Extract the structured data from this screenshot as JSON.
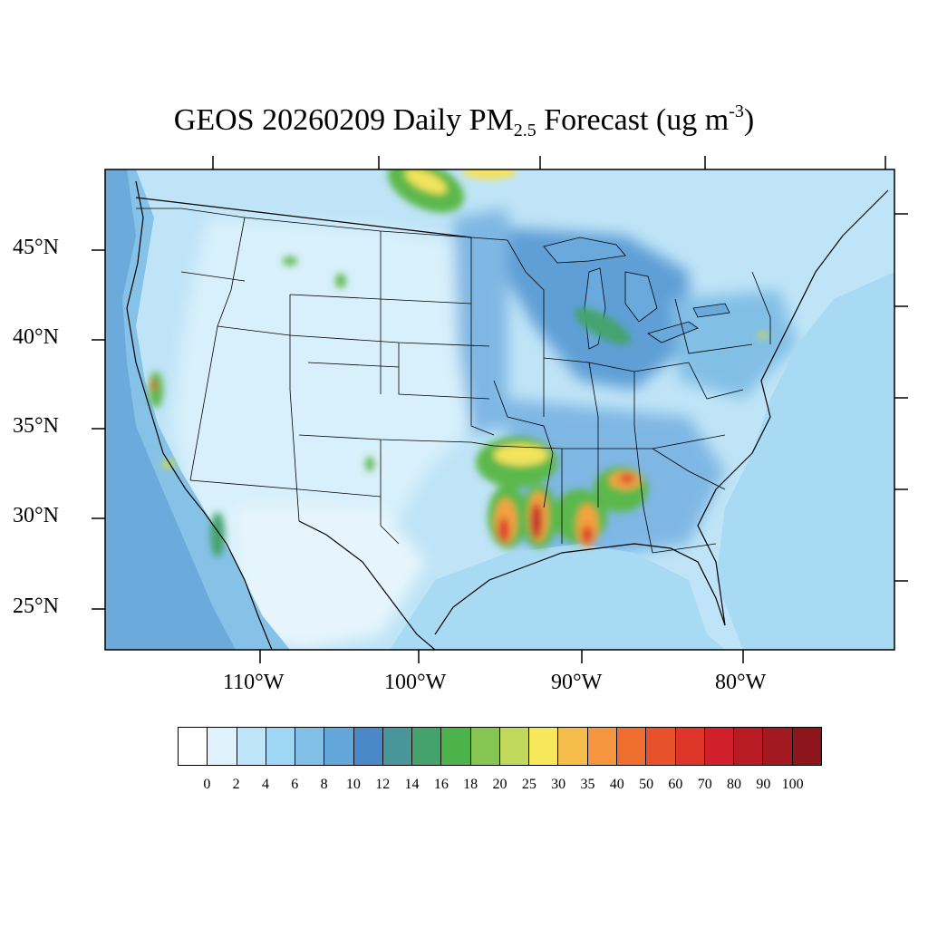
{
  "title": {
    "prefix": "GEOS 20260209 Daily PM",
    "sub": "2.5",
    "middle": " Forecast (ug m",
    "sup": "-3",
    "suffix": ")"
  },
  "lat_labels": [
    "45°N",
    "40°N",
    "35°N",
    "30°N",
    "25°N"
  ],
  "lon_labels": [
    "110°W",
    "100°W",
    "90°W",
    "80°W"
  ],
  "colorbar": {
    "labels": [
      "0",
      "2",
      "4",
      "6",
      "8",
      "10",
      "12",
      "14",
      "16",
      "18",
      "20",
      "25",
      "30",
      "35",
      "40",
      "50",
      "60",
      "70",
      "80",
      "90",
      "100"
    ],
    "colors": [
      "#ffffff",
      "#dff2fb",
      "#bde5f7",
      "#9fd6f4",
      "#82bfe6",
      "#63a6da",
      "#4a89c8",
      "#48969a",
      "#44a36d",
      "#4bb349",
      "#86c550",
      "#c2d85c",
      "#f6e75b",
      "#f7bd4c",
      "#f5953e",
      "#ef6d2f",
      "#e7512b",
      "#dd3629",
      "#d02029",
      "#b91b25",
      "#a2191f",
      "#8b151a"
    ]
  },
  "map": {
    "colors": {
      "background": "#bfe4f7",
      "ocean_west": "#86c2e8",
      "ocean_atlantic": "#a9daf4",
      "mid": "#7fb7e4",
      "dark": "#5f9fd6",
      "light": "#d8f0fb",
      "low": "#e6f5fc",
      "green": "#5cb84c",
      "yellow": "#f3e35d",
      "orange": "#f4a13f",
      "red": "#dc3a2a",
      "boundary": "#000000"
    },
    "features": [
      "pacific-ocean",
      "gulf-of-mexico",
      "atlantic-ocean",
      "great-lakes",
      "hotspot-louisiana",
      "hotspot-mississippi",
      "hotspot-alabama",
      "hotspot-east-texas",
      "hotspot-california",
      "hotspot-new-mexico",
      "plume-canada"
    ]
  }
}
